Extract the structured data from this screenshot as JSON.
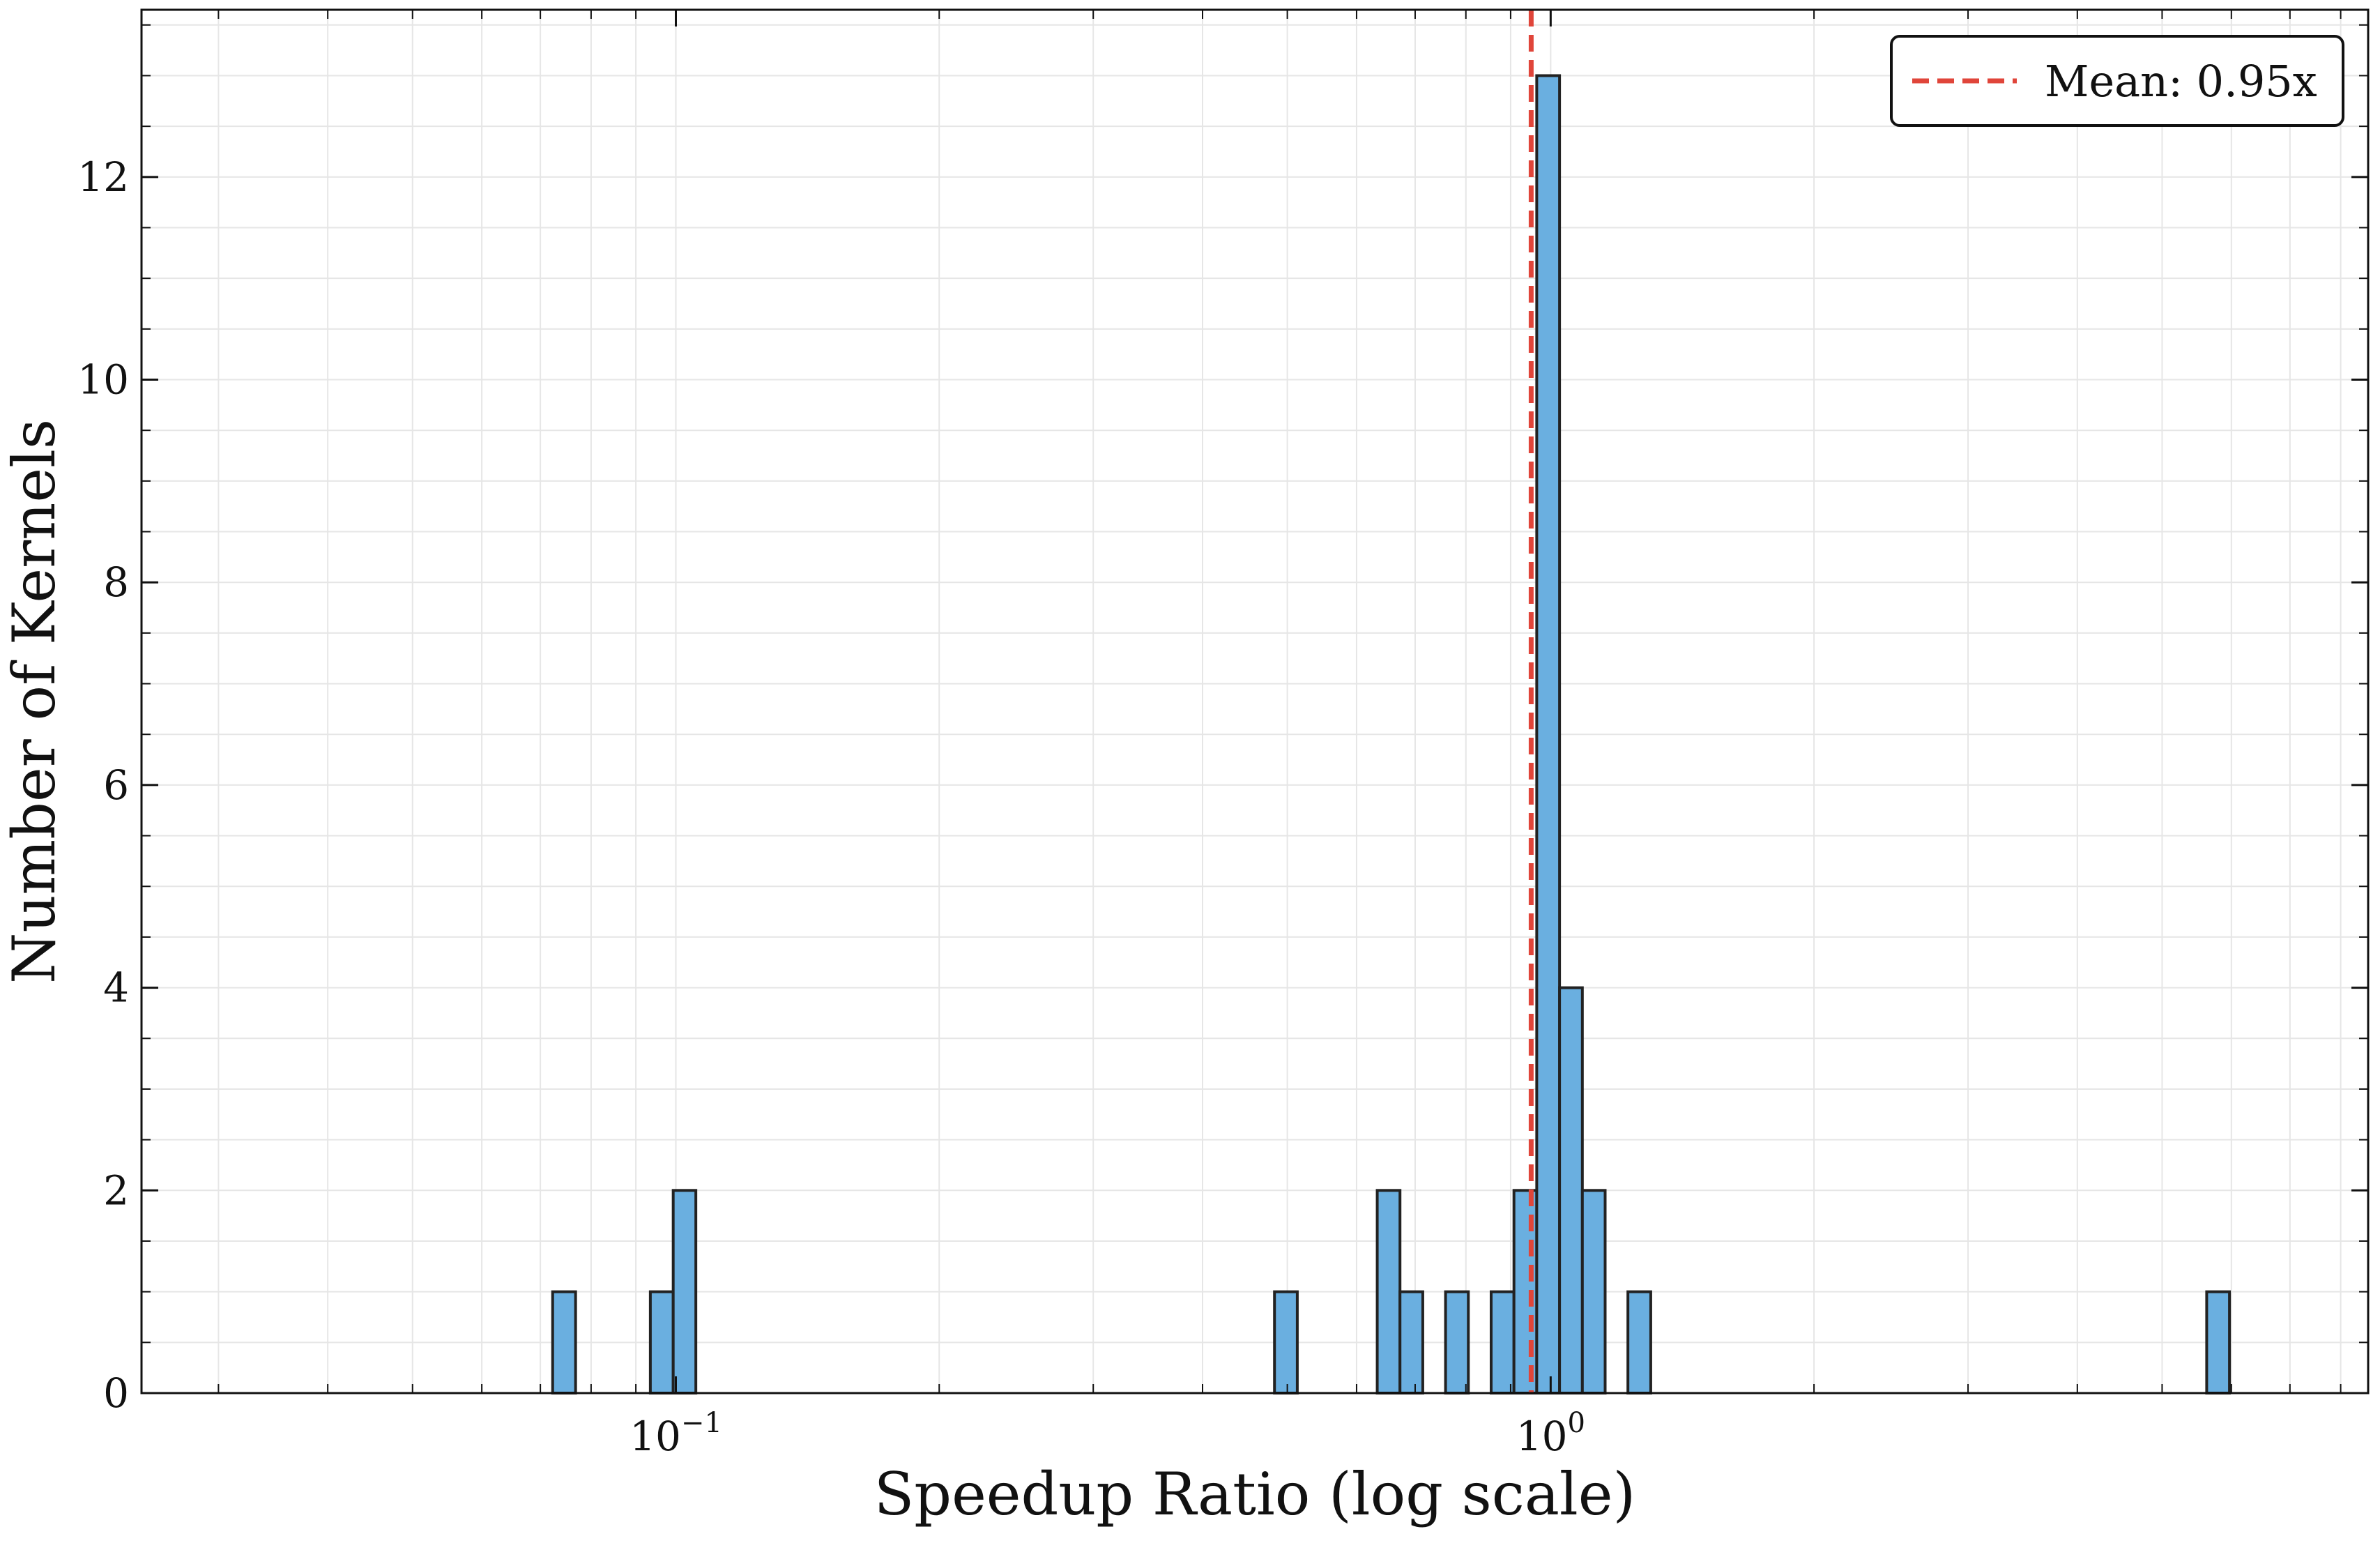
{
  "chart_data": {
    "type": "histogram",
    "xlabel": "Speedup Ratio (log scale)",
    "ylabel": "Number of Kernels",
    "x_scale": "log",
    "xlim": [
      0.0245,
      8.6
    ],
    "ylim": [
      0,
      13.65
    ],
    "y_ticks": [
      0,
      2,
      4,
      6,
      8,
      10,
      12
    ],
    "x_ticks": [
      {
        "value": 0.1,
        "base": "10",
        "exp": "−1"
      },
      {
        "value": 1,
        "base": "10",
        "exp": "0"
      }
    ],
    "grid": true,
    "bar_color": "#6aafe0",
    "bar_edge_color": "#222222",
    "bins": [
      {
        "x0": 0.0723,
        "x1": 0.0768,
        "count": 1
      },
      {
        "x0": 0.0935,
        "x1": 0.0993,
        "count": 1
      },
      {
        "x0": 0.0993,
        "x1": 0.1054,
        "count": 2
      },
      {
        "x0": 0.4834,
        "x1": 0.5133,
        "count": 1
      },
      {
        "x0": 0.6335,
        "x1": 0.6726,
        "count": 2
      },
      {
        "x0": 0.6726,
        "x1": 0.7142,
        "count": 1
      },
      {
        "x0": 0.7583,
        "x1": 0.8052,
        "count": 1
      },
      {
        "x0": 0.855,
        "x1": 0.9079,
        "count": 1
      },
      {
        "x0": 0.9079,
        "x1": 0.964,
        "count": 2
      },
      {
        "x0": 0.964,
        "x1": 1.0237,
        "count": 13
      },
      {
        "x0": 1.0237,
        "x1": 1.087,
        "count": 4
      },
      {
        "x0": 1.087,
        "x1": 1.1542,
        "count": 2
      },
      {
        "x0": 1.2255,
        "x1": 1.3014,
        "count": 1
      },
      {
        "x0": 5.6225,
        "x1": 5.9703,
        "count": 1
      }
    ],
    "mean_line": {
      "value": 0.95,
      "color": "#e0453a",
      "label": "Mean: 0.95x"
    },
    "legend": {
      "placement": "top-right"
    }
  }
}
